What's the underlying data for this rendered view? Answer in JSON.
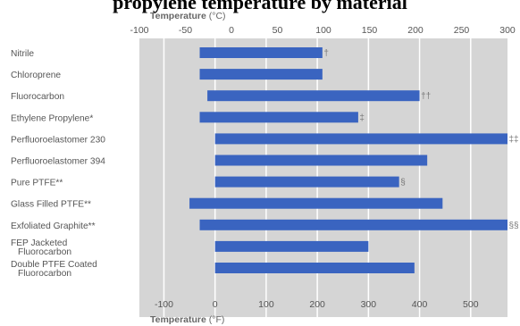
{
  "header": {
    "title": "propylene temperature by material"
  },
  "chart_data": {
    "type": "bar",
    "orientation": "horizontal",
    "top_axis": {
      "label": "Temperature",
      "unit": "(°C)",
      "min": -100,
      "max": 300,
      "ticks": [
        -100,
        -50,
        0,
        50,
        100,
        150,
        200,
        250,
        300
      ]
    },
    "bottom_axis": {
      "label": "Temperature",
      "unit": "(°F)",
      "ticks": [
        -100,
        0,
        100,
        200,
        300,
        400,
        500
      ]
    },
    "grid": true,
    "categories": [
      [
        "Nitrile"
      ],
      [
        "Chloroprene"
      ],
      [
        "Fluorocarbon"
      ],
      [
        "Ethylene Propylene*"
      ],
      [
        "Perfluoroelastomer 230"
      ],
      [
        "Perfluoroelastomer 394"
      ],
      [
        "Pure PTFE**"
      ],
      [
        "Glass Filled PTFE**"
      ],
      [
        "Exfoliated Graphite**"
      ],
      [
        "FEP Jacketed",
        "Fluorocarbon"
      ],
      [
        "Double PTFE Coated",
        "Fluorocarbon"
      ]
    ],
    "series": [
      {
        "color": "#3a64c0",
        "ranges_f": [
          [
            -30,
            210
          ],
          [
            -30,
            210
          ],
          [
            -15,
            400
          ],
          [
            -30,
            280
          ],
          [
            0,
            575
          ],
          [
            0,
            415
          ],
          [
            0,
            360
          ],
          [
            -50,
            445
          ],
          [
            -30,
            575
          ],
          [
            0,
            300
          ],
          [
            0,
            390
          ]
        ]
      }
    ],
    "annotations": [
      "†",
      "",
      "††",
      "‡",
      "‡‡",
      "",
      "§",
      "",
      "§§",
      "",
      ""
    ]
  }
}
